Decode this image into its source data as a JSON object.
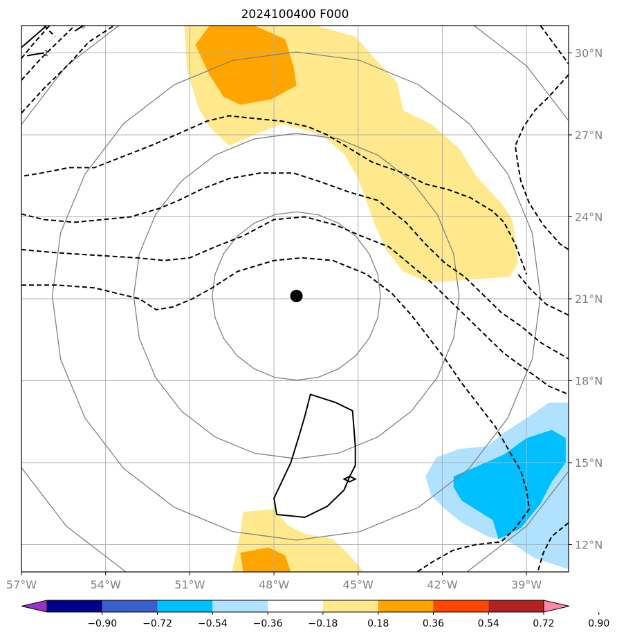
{
  "chart_data": {
    "type": "heatmap",
    "title": "2024100400 F000",
    "xlabel": "",
    "ylabel": "",
    "xlim": [
      -57,
      -37.5
    ],
    "ylim": [
      11,
      31
    ],
    "x_ticks": [
      {
        "value": -57,
        "label": "57°W"
      },
      {
        "value": -54,
        "label": "54°W"
      },
      {
        "value": -51,
        "label": "51°W"
      },
      {
        "value": -48,
        "label": "48°W"
      },
      {
        "value": -45,
        "label": "45°W"
      },
      {
        "value": -42,
        "label": "42°W"
      },
      {
        "value": -39,
        "label": "39°W"
      }
    ],
    "y_ticks": [
      {
        "value": 12,
        "label": "12°N"
      },
      {
        "value": 15,
        "label": "15°N"
      },
      {
        "value": 18,
        "label": "18°N"
      },
      {
        "value": 21,
        "label": "21°N"
      },
      {
        "value": 24,
        "label": "24°N"
      },
      {
        "value": 27,
        "label": "27°N"
      },
      {
        "value": 30,
        "label": "30°N"
      }
    ],
    "grid": true,
    "center": {
      "lon": -47.2,
      "lat": 21.1
    },
    "range_rings_deg": [
      3,
      5.8,
      8.7,
      11.6
    ],
    "colorbar": {
      "location": "bottom",
      "extend": "both",
      "bounds": [
        -0.9,
        -0.72,
        -0.54,
        -0.36,
        -0.18,
        0.18,
        0.36,
        0.54,
        0.72,
        0.9
      ],
      "tick_labels": [
        "−0.90",
        "−0.72",
        "−0.54",
        "−0.36",
        "−0.18",
        "0.18",
        "0.36",
        "0.54",
        "0.72",
        "0.90"
      ],
      "colors": [
        "#9932cc",
        "#00008b",
        "#3a5fcd",
        "#00bfff",
        "#b0e2ff",
        "#ffffff",
        "#ffe98c",
        "#ffa500",
        "#ff4500",
        "#b22222",
        "#ff88aa"
      ]
    },
    "filled_regions": [
      {
        "level": 0.18,
        "color": "#ffe98c",
        "points": [
          [
            -51.2,
            31
          ],
          [
            -46.5,
            31
          ],
          [
            -45.1,
            30.6
          ],
          [
            -44.5,
            29.9
          ],
          [
            -43.6,
            28.9
          ],
          [
            -43.4,
            27.9
          ],
          [
            -42.4,
            27.4
          ],
          [
            -41.4,
            26.5
          ],
          [
            -40.8,
            25.5
          ],
          [
            -39.9,
            24.5
          ],
          [
            -39.5,
            23.9
          ],
          [
            -39.3,
            22.3
          ],
          [
            -39.6,
            21.8
          ],
          [
            -42.5,
            21.6
          ],
          [
            -43.4,
            22.0
          ],
          [
            -44.0,
            22.8
          ],
          [
            -44.4,
            23.7
          ],
          [
            -45.0,
            25.4
          ],
          [
            -45.5,
            26.3
          ],
          [
            -46.3,
            27.0
          ],
          [
            -47.7,
            27.4
          ],
          [
            -48.7,
            27.0
          ],
          [
            -49.6,
            26.6
          ],
          [
            -50.3,
            27.3
          ],
          [
            -50.7,
            28.0
          ],
          [
            -51.1,
            29.4
          ]
        ]
      },
      {
        "level": 0.36,
        "color": "#ffa500",
        "points": [
          [
            -50.3,
            31
          ],
          [
            -48.7,
            31
          ],
          [
            -47.6,
            30.5
          ],
          [
            -47.3,
            29.5
          ],
          [
            -47.2,
            28.8
          ],
          [
            -48.1,
            28.3
          ],
          [
            -49.2,
            28.1
          ],
          [
            -49.8,
            28.4
          ],
          [
            -50.3,
            29.2
          ],
          [
            -50.8,
            30.3
          ]
        ]
      },
      {
        "level": 0.18,
        "color": "#ffe98c",
        "points": [
          [
            -49.5,
            11
          ],
          [
            -44.8,
            11
          ],
          [
            -45.3,
            11.6
          ],
          [
            -45.9,
            12.2
          ],
          [
            -46.9,
            12.4
          ],
          [
            -47.5,
            12.7
          ],
          [
            -48.0,
            13.3
          ],
          [
            -49.1,
            13.2
          ],
          [
            -49.2,
            12.4
          ]
        ]
      },
      {
        "level": 0.36,
        "color": "#ffa500",
        "points": [
          [
            -48.2,
            11
          ],
          [
            -47.4,
            11
          ],
          [
            -47.6,
            11.6
          ],
          [
            -48.2,
            11.9
          ],
          [
            -49.2,
            11.7
          ],
          [
            -49.1,
            11
          ]
        ]
      },
      {
        "level": -0.18,
        "color": "#b0e2ff",
        "points": [
          [
            -37.5,
            17.2
          ],
          [
            -37.5,
            11.1
          ],
          [
            -38.7,
            11.5
          ],
          [
            -39.6,
            12.1
          ],
          [
            -40.4,
            12.3
          ],
          [
            -41.3,
            12.8
          ],
          [
            -41.9,
            13.3
          ],
          [
            -42.4,
            13.8
          ],
          [
            -42.6,
            14.5
          ],
          [
            -42.2,
            15.2
          ],
          [
            -41.4,
            15.5
          ],
          [
            -40.4,
            15.6
          ],
          [
            -39.8,
            16.1
          ],
          [
            -38.9,
            16.7
          ],
          [
            -38.2,
            17.2
          ]
        ]
      },
      {
        "level": -0.36,
        "color": "#00bfff",
        "points": [
          [
            -38.1,
            16.2
          ],
          [
            -37.6,
            15.9
          ],
          [
            -37.6,
            15.0
          ],
          [
            -38.1,
            14.3
          ],
          [
            -38.5,
            13.5
          ],
          [
            -39.2,
            12.6
          ],
          [
            -40.0,
            12.2
          ],
          [
            -40.2,
            12.9
          ],
          [
            -41.3,
            13.6
          ],
          [
            -41.6,
            14.1
          ],
          [
            -41.6,
            14.5
          ],
          [
            -40.9,
            14.8
          ],
          [
            -39.8,
            15.3
          ],
          [
            -39.0,
            15.9
          ]
        ]
      }
    ],
    "solid_contours": [
      {
        "label": "",
        "closed": true,
        "points": [
          [
            -46.7,
            17.5
          ],
          [
            -45.8,
            17.2
          ],
          [
            -45.2,
            16.9
          ],
          [
            -45.1,
            15.6
          ],
          [
            -45.1,
            14.9
          ],
          [
            -45.3,
            14.5
          ],
          [
            -45.5,
            14.0
          ],
          [
            -46.1,
            13.4
          ],
          [
            -46.9,
            13.0
          ],
          [
            -47.9,
            13.1
          ],
          [
            -48.0,
            13.7
          ],
          [
            -47.4,
            15.0
          ],
          [
            -47.1,
            16.0
          ],
          [
            -46.9,
            16.7
          ]
        ]
      },
      {
        "label": "",
        "closed": true,
        "points": [
          [
            -45.3,
            14.5
          ],
          [
            -45.1,
            14.4
          ],
          [
            -45.3,
            14.3
          ],
          [
            -45.5,
            14.4
          ]
        ]
      },
      {
        "label": "",
        "closed": false,
        "points": [
          [
            -57,
            30.2
          ],
          [
            -56.1,
            31
          ]
        ]
      },
      {
        "label": "-1",
        "closed": false,
        "points": [
          [
            -56.8,
            29.9
          ],
          [
            -56.2,
            30.0
          ]
        ]
      },
      {
        "label": "0",
        "closed": false,
        "points": [
          [
            -55.1,
            30.8
          ],
          [
            -54.8,
            31
          ]
        ]
      }
    ],
    "dashed_contours": [
      {
        "label": "",
        "points": [
          [
            -57,
            27.8
          ],
          [
            -56.2,
            28.7
          ],
          [
            -55.3,
            29.6
          ],
          [
            -54.6,
            30.4
          ],
          [
            -53.7,
            31
          ]
        ]
      },
      {
        "label": "",
        "points": [
          [
            -57,
            29.0
          ],
          [
            -56.3,
            29.8
          ],
          [
            -55.5,
            30.6
          ],
          [
            -55.1,
            31
          ]
        ]
      },
      {
        "label": "",
        "points": [
          [
            -57,
            29.8
          ],
          [
            -56.6,
            30.3
          ],
          [
            -56.0,
            31
          ]
        ]
      },
      {
        "label": "",
        "points": [
          [
            -56.2,
            31
          ],
          [
            -55.8,
            30.6
          ]
        ]
      },
      {
        "label": "",
        "points": [
          [
            -56.9,
            25.5
          ],
          [
            -56.3,
            25.6
          ],
          [
            -55.3,
            25.8
          ],
          [
            -54.4,
            25.8
          ],
          [
            -53.4,
            26.2
          ],
          [
            -52.4,
            26.6
          ],
          [
            -51.5,
            27.0
          ],
          [
            -50.4,
            27.5
          ],
          [
            -49.6,
            27.7
          ],
          [
            -48.7,
            27.6
          ],
          [
            -47.7,
            27.5
          ],
          [
            -46.8,
            27.3
          ],
          [
            -46.1,
            27.0
          ],
          [
            -45.3,
            26.5
          ],
          [
            -44.5,
            26.0
          ],
          [
            -43.4,
            25.6
          ],
          [
            -42.6,
            25.2
          ],
          [
            -41.8,
            25.0
          ],
          [
            -41.0,
            24.7
          ],
          [
            -40.2,
            24.2
          ],
          [
            -39.8,
            23.8
          ],
          [
            -39.4,
            23.0
          ],
          [
            -39.0,
            21.9
          ]
        ]
      },
      {
        "label": "",
        "points": [
          [
            -57,
            24.1
          ],
          [
            -56.2,
            23.9
          ],
          [
            -55.1,
            23.8
          ],
          [
            -54.1,
            23.9
          ],
          [
            -53.1,
            24.0
          ],
          [
            -52.1,
            24.3
          ],
          [
            -51.4,
            24.6
          ],
          [
            -50.6,
            25.0
          ],
          [
            -49.6,
            25.4
          ],
          [
            -48.5,
            25.6
          ],
          [
            -47.3,
            25.6
          ],
          [
            -46.4,
            25.3
          ],
          [
            -45.3,
            24.9
          ],
          [
            -44.3,
            24.6
          ],
          [
            -43.3,
            23.8
          ],
          [
            -42.6,
            23.0
          ],
          [
            -41.9,
            22.3
          ],
          [
            -41.2,
            21.8
          ],
          [
            -40.5,
            21.1
          ],
          [
            -39.9,
            20.5
          ],
          [
            -39.2,
            20.0
          ],
          [
            -38.5,
            19.4
          ],
          [
            -37.5,
            18.8
          ]
        ]
      },
      {
        "label": "",
        "points": [
          [
            -57,
            22.8
          ],
          [
            -55.9,
            22.7
          ],
          [
            -54.5,
            22.6
          ],
          [
            -52.9,
            22.5
          ],
          [
            -51.9,
            22.4
          ],
          [
            -51.0,
            22.5
          ],
          [
            -50.1,
            22.9
          ],
          [
            -49.1,
            23.3
          ],
          [
            -48.0,
            23.9
          ],
          [
            -46.9,
            24.0
          ],
          [
            -45.8,
            23.7
          ],
          [
            -44.9,
            23.3
          ],
          [
            -43.9,
            22.9
          ],
          [
            -43.2,
            22.3
          ],
          [
            -42.5,
            21.7
          ],
          [
            -41.8,
            21.0
          ],
          [
            -41.2,
            20.4
          ],
          [
            -40.5,
            19.7
          ],
          [
            -39.8,
            19.0
          ],
          [
            -39.0,
            18.4
          ],
          [
            -38.2,
            17.8
          ],
          [
            -37.5,
            17.5
          ]
        ]
      },
      {
        "label": "",
        "points": [
          [
            -57,
            21.5
          ],
          [
            -55.7,
            21.5
          ],
          [
            -54.4,
            21.4
          ],
          [
            -53.6,
            21.2
          ],
          [
            -52.8,
            21.0
          ],
          [
            -52.2,
            20.6
          ],
          [
            -51.6,
            20.7
          ],
          [
            -50.9,
            21.0
          ],
          [
            -50.2,
            21.4
          ],
          [
            -49.3,
            22.0
          ],
          [
            -48.0,
            22.4
          ],
          [
            -47.0,
            22.5
          ],
          [
            -45.9,
            22.4
          ],
          [
            -44.7,
            21.9
          ],
          [
            -43.8,
            21.2
          ],
          [
            -43.1,
            20.4
          ],
          [
            -42.5,
            19.6
          ],
          [
            -41.9,
            18.8
          ],
          [
            -41.3,
            17.9
          ],
          [
            -40.7,
            17.1
          ],
          [
            -40.1,
            16.3
          ],
          [
            -39.6,
            15.4
          ],
          [
            -39.2,
            14.7
          ],
          [
            -39.0,
            14.0
          ],
          [
            -38.9,
            13.3
          ],
          [
            -39.4,
            12.6
          ],
          [
            -39.9,
            12.1
          ],
          [
            -40.8,
            12.0
          ],
          [
            -41.6,
            11.8
          ],
          [
            -42.3,
            11.4
          ],
          [
            -42.9,
            11
          ]
        ]
      },
      {
        "label": "",
        "points": [
          [
            -38.5,
            31
          ],
          [
            -37.5,
            29.6
          ]
        ]
      },
      {
        "label": "",
        "points": [
          [
            -37.5,
            29.2
          ],
          [
            -38.2,
            28.4
          ],
          [
            -38.7,
            27.9
          ],
          [
            -39.1,
            27.3
          ],
          [
            -39.4,
            26.6
          ],
          [
            -39.3,
            25.9
          ],
          [
            -39.2,
            25.3
          ],
          [
            -38.9,
            24.5
          ],
          [
            -38.4,
            23.7
          ],
          [
            -37.8,
            23.0
          ],
          [
            -37.5,
            22.8
          ]
        ]
      },
      {
        "label": "",
        "points": [
          [
            -37.5,
            20.4
          ],
          [
            -38.3,
            20.8
          ],
          [
            -38.9,
            21.4
          ],
          [
            -39.3,
            21.9
          ]
        ]
      },
      {
        "label": "",
        "points": [
          [
            -37.5,
            12.8
          ],
          [
            -38.1,
            12.3
          ],
          [
            -38.4,
            11.7
          ],
          [
            -38.6,
            11
          ]
        ]
      }
    ]
  }
}
